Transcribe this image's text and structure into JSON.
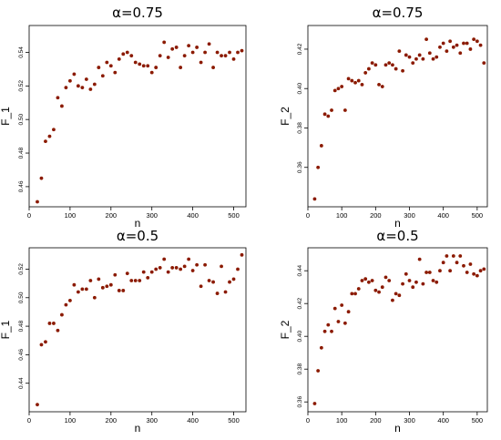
{
  "chart_data": [
    {
      "type": "scatter",
      "title": "α=0.75",
      "xlabel": "n",
      "ylabel": "F_1",
      "xlim": [
        0,
        530
      ],
      "ylim": [
        0.448,
        0.556
      ],
      "xticks": [
        0,
        100,
        200,
        300,
        400,
        500
      ],
      "yticks": [
        0.46,
        0.48,
        0.5,
        0.52,
        0.54
      ],
      "yticklabels": [
        "0.46",
        "0.48",
        "0.50",
        "0.52",
        "0.54"
      ],
      "point_color": "#8b1a00",
      "x": [
        20,
        30,
        40,
        50,
        60,
        70,
        80,
        90,
        100,
        110,
        120,
        130,
        140,
        150,
        160,
        170,
        180,
        190,
        200,
        210,
        220,
        230,
        240,
        250,
        260,
        270,
        280,
        290,
        300,
        310,
        320,
        330,
        340,
        350,
        360,
        370,
        380,
        390,
        400,
        410,
        420,
        430,
        440,
        450,
        460,
        470,
        480,
        490,
        500,
        510,
        520
      ],
      "y": [
        0.451,
        0.465,
        0.487,
        0.49,
        0.494,
        0.513,
        0.508,
        0.519,
        0.523,
        0.527,
        0.52,
        0.519,
        0.524,
        0.518,
        0.521,
        0.531,
        0.526,
        0.534,
        0.532,
        0.528,
        0.536,
        0.539,
        0.54,
        0.538,
        0.534,
        0.533,
        0.532,
        0.532,
        0.528,
        0.531,
        0.538,
        0.546,
        0.537,
        0.542,
        0.543,
        0.531,
        0.538,
        0.544,
        0.54,
        0.543,
        0.534,
        0.54,
        0.545,
        0.531,
        0.54,
        0.538,
        0.538,
        0.54,
        0.536,
        0.54,
        0.541
      ]
    },
    {
      "type": "scatter",
      "title": "α=0.75",
      "xlabel": "n",
      "ylabel": "F_2",
      "xlim": [
        0,
        530
      ],
      "ylim": [
        0.34,
        0.432
      ],
      "xticks": [
        0,
        100,
        200,
        300,
        400,
        500
      ],
      "yticks": [
        0.36,
        0.38,
        0.4,
        0.42
      ],
      "yticklabels": [
        "0.36",
        "0.38",
        "0.40",
        "0.42"
      ],
      "point_color": "#8b1a00",
      "x": [
        20,
        30,
        40,
        50,
        60,
        70,
        80,
        90,
        100,
        110,
        120,
        130,
        140,
        150,
        160,
        170,
        180,
        190,
        200,
        210,
        220,
        230,
        240,
        250,
        260,
        270,
        280,
        290,
        300,
        310,
        320,
        330,
        340,
        350,
        360,
        370,
        380,
        390,
        400,
        410,
        420,
        430,
        440,
        450,
        460,
        470,
        480,
        490,
        500,
        510,
        520
      ],
      "y": [
        0.344,
        0.36,
        0.371,
        0.387,
        0.386,
        0.389,
        0.399,
        0.4,
        0.401,
        0.389,
        0.405,
        0.404,
        0.403,
        0.404,
        0.402,
        0.408,
        0.41,
        0.413,
        0.412,
        0.402,
        0.401,
        0.412,
        0.413,
        0.412,
        0.41,
        0.419,
        0.409,
        0.417,
        0.416,
        0.413,
        0.415,
        0.417,
        0.415,
        0.425,
        0.418,
        0.415,
        0.416,
        0.421,
        0.423,
        0.419,
        0.424,
        0.421,
        0.422,
        0.418,
        0.423,
        0.423,
        0.42,
        0.425,
        0.424,
        0.422,
        0.413
      ]
    },
    {
      "type": "scatter",
      "title": "α=0.5",
      "xlabel": "n",
      "ylabel": "F_1",
      "xlim": [
        0,
        530
      ],
      "ylim": [
        0.42,
        0.535
      ],
      "xticks": [
        0,
        100,
        200,
        300,
        400,
        500
      ],
      "yticks": [
        0.44,
        0.46,
        0.48,
        0.5,
        0.52
      ],
      "yticklabels": [
        "0.44",
        "0.46",
        "0.48",
        "0.50",
        "0.52"
      ],
      "point_color": "#8b1a00",
      "x": [
        20,
        30,
        40,
        50,
        60,
        70,
        80,
        90,
        100,
        110,
        120,
        130,
        140,
        150,
        160,
        170,
        180,
        190,
        200,
        210,
        220,
        230,
        240,
        250,
        260,
        270,
        280,
        290,
        300,
        310,
        320,
        330,
        340,
        350,
        360,
        370,
        380,
        390,
        400,
        410,
        420,
        430,
        440,
        450,
        460,
        470,
        480,
        490,
        500,
        510,
        520
      ],
      "y": [
        0.425,
        0.467,
        0.469,
        0.482,
        0.482,
        0.477,
        0.488,
        0.495,
        0.498,
        0.509,
        0.504,
        0.506,
        0.506,
        0.512,
        0.5,
        0.513,
        0.507,
        0.508,
        0.509,
        0.516,
        0.505,
        0.505,
        0.517,
        0.512,
        0.512,
        0.512,
        0.518,
        0.514,
        0.518,
        0.52,
        0.521,
        0.527,
        0.518,
        0.521,
        0.521,
        0.52,
        0.522,
        0.527,
        0.519,
        0.523,
        0.508,
        0.523,
        0.512,
        0.511,
        0.503,
        0.522,
        0.504,
        0.511,
        0.513,
        0.52,
        0.53
      ]
    },
    {
      "type": "scatter",
      "title": "α=0.5",
      "xlabel": "n",
      "ylabel": "F_2",
      "xlim": [
        0,
        530
      ],
      "ylim": [
        0.354,
        0.454
      ],
      "xticks": [
        0,
        100,
        200,
        300,
        400,
        500
      ],
      "yticks": [
        0.36,
        0.38,
        0.4,
        0.42,
        0.44
      ],
      "yticklabels": [
        "0.36",
        "0.38",
        "0.40",
        "0.42",
        "0.44"
      ],
      "point_color": "#8b1a00",
      "x": [
        20,
        30,
        40,
        50,
        60,
        70,
        80,
        90,
        100,
        110,
        120,
        130,
        140,
        150,
        160,
        170,
        180,
        190,
        200,
        210,
        220,
        230,
        240,
        250,
        260,
        270,
        280,
        290,
        300,
        310,
        320,
        330,
        340,
        350,
        360,
        370,
        380,
        390,
        400,
        410,
        420,
        430,
        440,
        450,
        460,
        470,
        480,
        490,
        500,
        510,
        520
      ],
      "y": [
        0.359,
        0.379,
        0.393,
        0.403,
        0.407,
        0.403,
        0.417,
        0.409,
        0.419,
        0.408,
        0.415,
        0.426,
        0.426,
        0.429,
        0.434,
        0.435,
        0.433,
        0.434,
        0.428,
        0.427,
        0.43,
        0.436,
        0.434,
        0.422,
        0.426,
        0.425,
        0.432,
        0.438,
        0.434,
        0.43,
        0.433,
        0.447,
        0.432,
        0.439,
        0.439,
        0.434,
        0.433,
        0.44,
        0.445,
        0.449,
        0.44,
        0.449,
        0.445,
        0.449,
        0.443,
        0.439,
        0.444,
        0.438,
        0.437,
        0.44,
        0.441
      ]
    }
  ]
}
